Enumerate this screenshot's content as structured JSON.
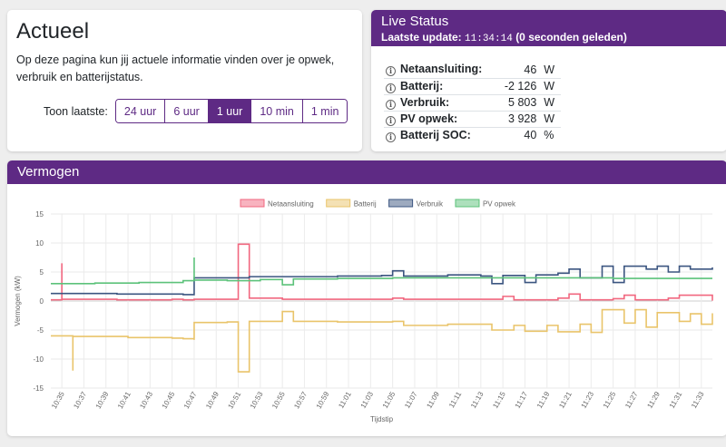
{
  "actueel": {
    "title": "Actueel",
    "description": "Op deze pagina kun jij actuele informatie vinden over je opwek, verbruik en batterijstatus.",
    "range_label": "Toon laatste:",
    "range_buttons": [
      "24 uur",
      "6 uur",
      "1 uur",
      "10 min",
      "1 min"
    ],
    "active_range": "1 uur"
  },
  "status": {
    "title": "Live Status",
    "update_prefix": "Laatste update:",
    "update_time": "11:34:14",
    "update_suffix": "(0 seconden geleden)",
    "rows": [
      {
        "label": "Netaansluiting:",
        "value": "46",
        "unit": "W"
      },
      {
        "label": "Batterij:",
        "value": "-2 126",
        "unit": "W"
      },
      {
        "label": "Verbruik:",
        "value": "5 803",
        "unit": "W"
      },
      {
        "label": "PV opwek:",
        "value": "3 928",
        "unit": "W"
      },
      {
        "label": "Batterij SOC:",
        "value": "40",
        "unit": "%"
      }
    ]
  },
  "vermogen": {
    "title": "Vermogen"
  },
  "chart_data": {
    "type": "line",
    "xlabel": "Tijdstip",
    "ylabel": "Vermogen (kW)",
    "ylim": [
      -15,
      15
    ],
    "yticks": [
      15,
      10,
      5,
      0,
      -5,
      -10,
      -15
    ],
    "x_range": [
      "10:34",
      "11:34"
    ],
    "x_ticks": [
      "10:35",
      "10:37",
      "10:39",
      "10:41",
      "10:43",
      "10:45",
      "10:47",
      "10:49",
      "10:51",
      "10:53",
      "10:55",
      "10:57",
      "10:59",
      "11:01",
      "11:03",
      "11:05",
      "11:07",
      "11:09",
      "11:11",
      "11:13",
      "11:15",
      "11:17",
      "11:19",
      "11:21",
      "11:23",
      "11:25",
      "11:27",
      "11:29",
      "11:31",
      "11:33"
    ],
    "grid": true,
    "legend_position": "top",
    "series": [
      {
        "name": "Netaansluiting",
        "color": "#f1677f",
        "points": [
          [
            "10:34",
            0.2
          ],
          [
            "10:35",
            0.3
          ],
          [
            "10:35",
            6.5
          ],
          [
            "10:35",
            0.3
          ],
          [
            "10:40",
            0.2
          ],
          [
            "10:45",
            0.3
          ],
          [
            "10:46",
            0.2
          ],
          [
            "10:47",
            0.3
          ],
          [
            "10:51",
            0.3
          ],
          [
            "10:51",
            9.8
          ],
          [
            "10:52",
            9.8
          ],
          [
            "10:52",
            0.5
          ],
          [
            "10:55",
            0.3
          ],
          [
            "11:00",
            0.3
          ],
          [
            "11:05",
            0.5
          ],
          [
            "11:06",
            0.3
          ],
          [
            "11:10",
            0.3
          ],
          [
            "11:14",
            0.3
          ],
          [
            "11:15",
            0.8
          ],
          [
            "11:16",
            0.2
          ],
          [
            "11:20",
            0.5
          ],
          [
            "11:21",
            1.2
          ],
          [
            "11:22",
            0.2
          ],
          [
            "11:25",
            0.4
          ],
          [
            "11:26",
            1.0
          ],
          [
            "11:27",
            0.2
          ],
          [
            "11:30",
            0.5
          ],
          [
            "11:31",
            1.0
          ],
          [
            "11:34",
            0.05
          ]
        ]
      },
      {
        "name": "Batterij",
        "color": "#e9c46a",
        "points": [
          [
            "10:34",
            -6.0
          ],
          [
            "10:36",
            -6.1
          ],
          [
            "10:36",
            -12.0
          ],
          [
            "10:36",
            -6.1
          ],
          [
            "10:41",
            -6.3
          ],
          [
            "10:45",
            -6.4
          ],
          [
            "10:46",
            -6.5
          ],
          [
            "10:47",
            -6.7
          ],
          [
            "10:47",
            -3.7
          ],
          [
            "10:50",
            -3.6
          ],
          [
            "10:51",
            -3.6
          ],
          [
            "10:51",
            -12.2
          ],
          [
            "10:52",
            -12.2
          ],
          [
            "10:52",
            -3.5
          ],
          [
            "10:55",
            -3.5
          ],
          [
            "10:55",
            -1.8
          ],
          [
            "10:56",
            -3.5
          ],
          [
            "11:00",
            -3.6
          ],
          [
            "11:05",
            -3.5
          ],
          [
            "11:06",
            -4.2
          ],
          [
            "11:10",
            -4.0
          ],
          [
            "11:13",
            -4.0
          ],
          [
            "11:14",
            -5.0
          ],
          [
            "11:16",
            -4.2
          ],
          [
            "11:17",
            -5.2
          ],
          [
            "11:19",
            -4.2
          ],
          [
            "11:20",
            -5.3
          ],
          [
            "11:22",
            -4.0
          ],
          [
            "11:23",
            -5.4
          ],
          [
            "11:24",
            -4.2
          ],
          [
            "11:24",
            -1.5
          ],
          [
            "11:26",
            -3.8
          ],
          [
            "11:27",
            -1.5
          ],
          [
            "11:28",
            -4.5
          ],
          [
            "11:29",
            -2.0
          ],
          [
            "11:31",
            -3.5
          ],
          [
            "11:32",
            -2.2
          ],
          [
            "11:33",
            -4.0
          ],
          [
            "11:34",
            -2.1
          ]
        ]
      },
      {
        "name": "Verbruik",
        "color": "#3b5580",
        "points": [
          [
            "10:34",
            1.3
          ],
          [
            "10:40",
            1.2
          ],
          [
            "10:46",
            1.1
          ],
          [
            "10:47",
            1.1
          ],
          [
            "10:47",
            4.0
          ],
          [
            "10:51",
            4.0
          ],
          [
            "10:52",
            4.2
          ],
          [
            "10:55",
            4.2
          ],
          [
            "11:00",
            4.3
          ],
          [
            "11:04",
            4.4
          ],
          [
            "11:05",
            5.2
          ],
          [
            "11:06",
            4.3
          ],
          [
            "11:10",
            4.5
          ],
          [
            "11:13",
            4.3
          ],
          [
            "11:14",
            3.0
          ],
          [
            "11:15",
            4.4
          ],
          [
            "11:17",
            3.2
          ],
          [
            "11:18",
            4.5
          ],
          [
            "11:20",
            4.8
          ],
          [
            "11:21",
            5.5
          ],
          [
            "11:22",
            4.0
          ],
          [
            "11:24",
            6.0
          ],
          [
            "11:25",
            3.2
          ],
          [
            "11:26",
            6.0
          ],
          [
            "11:28",
            5.5
          ],
          [
            "11:29",
            6.0
          ],
          [
            "11:30",
            5.0
          ],
          [
            "11:31",
            6.0
          ],
          [
            "11:32",
            5.5
          ],
          [
            "11:34",
            5.8
          ]
        ]
      },
      {
        "name": "PV opwek",
        "color": "#5cc27a",
        "points": [
          [
            "10:34",
            3.0
          ],
          [
            "10:38",
            3.1
          ],
          [
            "10:42",
            3.2
          ],
          [
            "10:46",
            3.5
          ],
          [
            "10:47",
            3.8
          ],
          [
            "10:47",
            7.5
          ],
          [
            "10:47",
            3.6
          ],
          [
            "10:50",
            3.5
          ],
          [
            "10:53",
            3.7
          ],
          [
            "10:55",
            2.8
          ],
          [
            "10:56",
            3.8
          ],
          [
            "11:00",
            3.9
          ],
          [
            "11:05",
            4.0
          ],
          [
            "11:10",
            4.0
          ],
          [
            "11:15",
            4.0
          ],
          [
            "11:20",
            4.0
          ],
          [
            "11:25",
            3.9
          ],
          [
            "11:30",
            3.9
          ],
          [
            "11:34",
            3.9
          ]
        ]
      }
    ]
  }
}
